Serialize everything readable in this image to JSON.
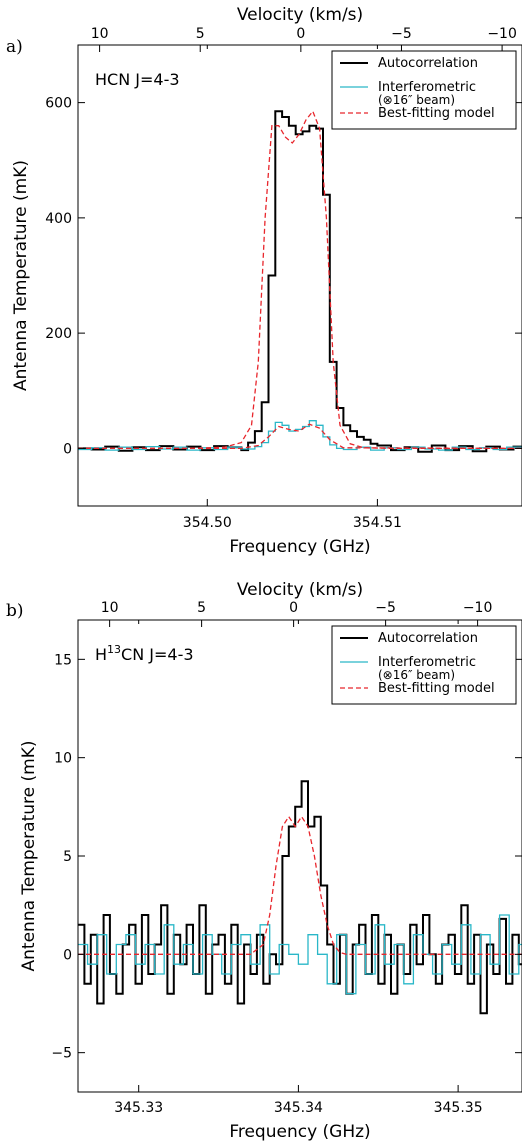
{
  "chart_data": [
    {
      "type": "line",
      "panel_label": "a)",
      "annotation": "HCN J=4-3",
      "xlabel": "Frequency (GHz)",
      "ylabel": "Antenna Temperature (mK)",
      "top_xlabel": "Velocity (km/s)",
      "xlim": [
        354.4924,
        354.5185
      ],
      "ylim": [
        -100,
        700
      ],
      "xticks": [
        354.5,
        354.51
      ],
      "xtick_labels": [
        "354.50",
        "354.51"
      ],
      "yticks": [
        0,
        200,
        400,
        600
      ],
      "ytick_labels": [
        "0",
        "200",
        "400",
        "600"
      ],
      "top_ticks": [
        10,
        5,
        0,
        -5,
        -10
      ],
      "top_tick_labels": [
        "10",
        "5",
        "0",
        "−5",
        "−10"
      ],
      "velocity_map": {
        "ref_freq_ghz": 354.5055,
        "ghz_per_kms": -0.001183
      },
      "legend_position": "top-right",
      "legend": [
        {
          "label": "Autocorrelation",
          "sub": ""
        },
        {
          "label": "Interferometric",
          "sub": "(⊗16″ beam)"
        },
        {
          "label": "Best-fitting model",
          "sub": ""
        }
      ],
      "series": [
        {
          "name": "Autocorrelation",
          "color": "#000000",
          "style": "step",
          "x": [
            354.4924,
            354.4932,
            354.494,
            354.4948,
            354.4956,
            354.4964,
            354.4972,
            354.498,
            354.4988,
            354.4996,
            354.5004,
            354.5012,
            354.502,
            354.5024,
            354.5028,
            354.5032,
            354.5036,
            354.504,
            354.5044,
            354.5048,
            354.5052,
            354.5056,
            354.506,
            354.5064,
            354.5068,
            354.5072,
            354.5076,
            354.508,
            354.5084,
            354.5088,
            354.5092,
            354.5096,
            354.51,
            354.5108,
            354.5116,
            354.5124,
            354.5132,
            354.514,
            354.5148,
            354.5156,
            354.5164,
            354.5172,
            354.518,
            354.5185
          ],
          "y": [
            0,
            -2,
            3,
            -4,
            2,
            -3,
            4,
            -2,
            3,
            -3,
            4,
            2,
            -3,
            10,
            30,
            80,
            300,
            585,
            575,
            560,
            545,
            550,
            560,
            555,
            440,
            150,
            70,
            40,
            30,
            20,
            15,
            8,
            5,
            -3,
            2,
            -6,
            5,
            -3,
            4,
            -5,
            3,
            -2,
            3,
            0
          ]
        },
        {
          "name": "Interferometric",
          "color": "#2ab7c8",
          "style": "step",
          "x": [
            354.4924,
            354.4932,
            354.494,
            354.4948,
            354.4956,
            354.4964,
            354.4972,
            354.498,
            354.4988,
            354.4996,
            354.5004,
            354.5012,
            354.502,
            354.5028,
            354.5032,
            354.5036,
            354.504,
            354.5044,
            354.5048,
            354.5052,
            354.5056,
            354.506,
            354.5064,
            354.5068,
            354.5072,
            354.5076,
            354.508,
            354.5088,
            354.5096,
            354.5104,
            354.5112,
            354.512,
            354.5128,
            354.5136,
            354.5144,
            354.5152,
            354.516,
            354.5168,
            354.5176,
            354.5185
          ],
          "y": [
            -2,
            1,
            -3,
            2,
            -2,
            3,
            -1,
            2,
            -3,
            1,
            -2,
            2,
            -1,
            3,
            10,
            30,
            45,
            40,
            30,
            33,
            38,
            48,
            40,
            20,
            6,
            0,
            -2,
            2,
            -3,
            1,
            -2,
            2,
            -1,
            -3,
            2,
            -2,
            1,
            -2,
            2,
            -1
          ]
        },
        {
          "name": "Best-fitting model",
          "color": "#e8262c",
          "style": "dashed",
          "x": [
            354.4924,
            354.499,
            354.501,
            354.502,
            354.5026,
            354.503,
            354.5034,
            354.5038,
            354.5042,
            354.5046,
            354.505,
            354.5054,
            354.5058,
            354.5062,
            354.5066,
            354.507,
            354.5074,
            354.5078,
            354.5084,
            354.5092,
            354.511,
            354.5185
          ],
          "y": [
            0,
            0,
            2,
            10,
            40,
            150,
            400,
            560,
            560,
            540,
            530,
            545,
            570,
            585,
            555,
            400,
            150,
            40,
            8,
            1,
            0,
            0
          ]
        },
        {
          "name": "Model (interferometric)",
          "color": "#e8262c",
          "style": "dashed",
          "x": [
            354.4924,
            354.502,
            354.503,
            354.5036,
            354.5042,
            354.5048,
            354.5054,
            354.506,
            354.5066,
            354.5072,
            354.508,
            354.5185
          ],
          "y": [
            0,
            0,
            5,
            20,
            38,
            33,
            30,
            42,
            35,
            15,
            1,
            0
          ]
        }
      ]
    },
    {
      "type": "line",
      "panel_label": "b)",
      "annotation_base": "H",
      "annotation_sup": "13",
      "annotation_rest": "CN J=4-3",
      "xlabel": "Frequency (GHz)",
      "ylabel": "Antenna Temperature (mK)",
      "top_xlabel": "Velocity (km/s)",
      "xlim": [
        345.3262,
        345.354
      ],
      "ylim": [
        -7,
        17
      ],
      "xticks": [
        345.33,
        345.34,
        345.35
      ],
      "xtick_labels": [
        "345.33",
        "345.34",
        "345.35"
      ],
      "yticks": [
        -5,
        0,
        5,
        10,
        15
      ],
      "ytick_labels": [
        "−5",
        "0",
        "5",
        "10",
        "15"
      ],
      "top_ticks": [
        10,
        5,
        0,
        -5,
        -10
      ],
      "top_tick_labels": [
        "10",
        "5",
        "0",
        "−5",
        "−10"
      ],
      "velocity_map": {
        "ref_freq_ghz": 345.3397,
        "ghz_per_kms": -0.001152
      },
      "legend_position": "top-right",
      "legend": [
        {
          "label": "Autocorrelation",
          "sub": ""
        },
        {
          "label": "Interferometric",
          "sub": "(⊗16″ beam)"
        },
        {
          "label": "Best-fitting model",
          "sub": ""
        }
      ],
      "series": [
        {
          "name": "Autocorrelation",
          "color": "#000000",
          "style": "step",
          "x": [
            345.3262,
            345.3266,
            345.327,
            345.3274,
            345.3278,
            345.3282,
            345.3286,
            345.329,
            345.3294,
            345.3298,
            345.3302,
            345.3306,
            345.331,
            345.3314,
            345.3318,
            345.3322,
            345.3326,
            345.333,
            345.3334,
            345.3338,
            345.3342,
            345.3346,
            345.335,
            345.3354,
            345.3358,
            345.3362,
            345.3366,
            345.337,
            345.3374,
            345.3378,
            345.3382,
            345.3386,
            345.339,
            345.3394,
            345.3398,
            345.3402,
            345.3406,
            345.341,
            345.3414,
            345.3418,
            345.3422,
            345.3426,
            345.343,
            345.3434,
            345.3438,
            345.3442,
            345.3446,
            345.345,
            345.3454,
            345.3458,
            345.3462,
            345.3466,
            345.347,
            345.3474,
            345.3478,
            345.3482,
            345.3486,
            345.349,
            345.3494,
            345.3498,
            345.3502,
            345.3506,
            345.351,
            345.3514,
            345.3518,
            345.3522,
            345.3526,
            345.353,
            345.3534,
            345.3538
          ],
          "y": [
            1.5,
            -1.5,
            1,
            -2.5,
            2,
            -1,
            -2,
            0.5,
            1.5,
            -1.5,
            2,
            -1,
            0.5,
            2.5,
            -2,
            1,
            -0.5,
            1.5,
            -1,
            2.5,
            -2,
            0.5,
            1,
            -1.5,
            1.5,
            -2.5,
            0.5,
            -1,
            1,
            -1.5,
            0,
            -0.5,
            5,
            6.5,
            7.5,
            8.8,
            6.5,
            7,
            3.5,
            0.5,
            -1.5,
            1,
            -2,
            0.5,
            1.5,
            -1,
            2,
            -1.5,
            1,
            -2,
            0.5,
            -1,
            1.5,
            -0.5,
            2,
            0,
            -1.5,
            0.5,
            1,
            -1,
            2.5,
            -1.5,
            1,
            -3,
            0.5,
            -1,
            1.8,
            -1.5,
            1,
            -0.5
          ]
        },
        {
          "name": "Interferometric",
          "color": "#2ab7c8",
          "style": "step",
          "x": [
            345.3262,
            345.3268,
            345.3274,
            345.328,
            345.3286,
            345.3292,
            345.3298,
            345.3304,
            345.331,
            345.3316,
            345.3322,
            345.3328,
            345.3334,
            345.334,
            345.3346,
            345.3352,
            345.3358,
            345.3364,
            345.337,
            345.3376,
            345.3382,
            345.3388,
            345.3394,
            345.34,
            345.3406,
            345.3412,
            345.3418,
            345.3424,
            345.343,
            345.3436,
            345.3442,
            345.3448,
            345.3454,
            345.346,
            345.3466,
            345.3472,
            345.3478,
            345.3484,
            345.349,
            345.3496,
            345.3502,
            345.3508,
            345.3514,
            345.352,
            345.3526,
            345.3532,
            345.3538
          ],
          "y": [
            0.5,
            -0.5,
            1,
            -1,
            0.5,
            1,
            -0.5,
            0.5,
            -1,
            1.5,
            -0.5,
            0.5,
            -1,
            1,
            0,
            -1,
            0.5,
            1,
            -0.5,
            1.5,
            -1,
            0.5,
            0,
            -0.5,
            1,
            0,
            -1.5,
            1,
            -2,
            0.5,
            -1,
            1.5,
            -0.5,
            0.5,
            -1.5,
            1,
            0,
            -1,
            0.5,
            -0.5,
            1.5,
            -1,
            1,
            -0.5,
            2,
            -1,
            0.5
          ]
        },
        {
          "name": "Best-fitting model",
          "color": "#e8262c",
          "style": "dashed",
          "x": [
            345.3262,
            345.337,
            345.3378,
            345.3382,
            345.3386,
            345.339,
            345.3394,
            345.3398,
            345.3402,
            345.3406,
            345.341,
            345.3414,
            345.3418,
            345.3422,
            345.3426,
            345.343,
            345.3436,
            345.354
          ],
          "y": [
            0,
            0,
            0.5,
            2,
            4.5,
            6.5,
            7,
            6.5,
            7,
            6.5,
            5,
            3,
            1.5,
            0.5,
            0.1,
            0,
            0,
            0
          ]
        }
      ]
    }
  ]
}
